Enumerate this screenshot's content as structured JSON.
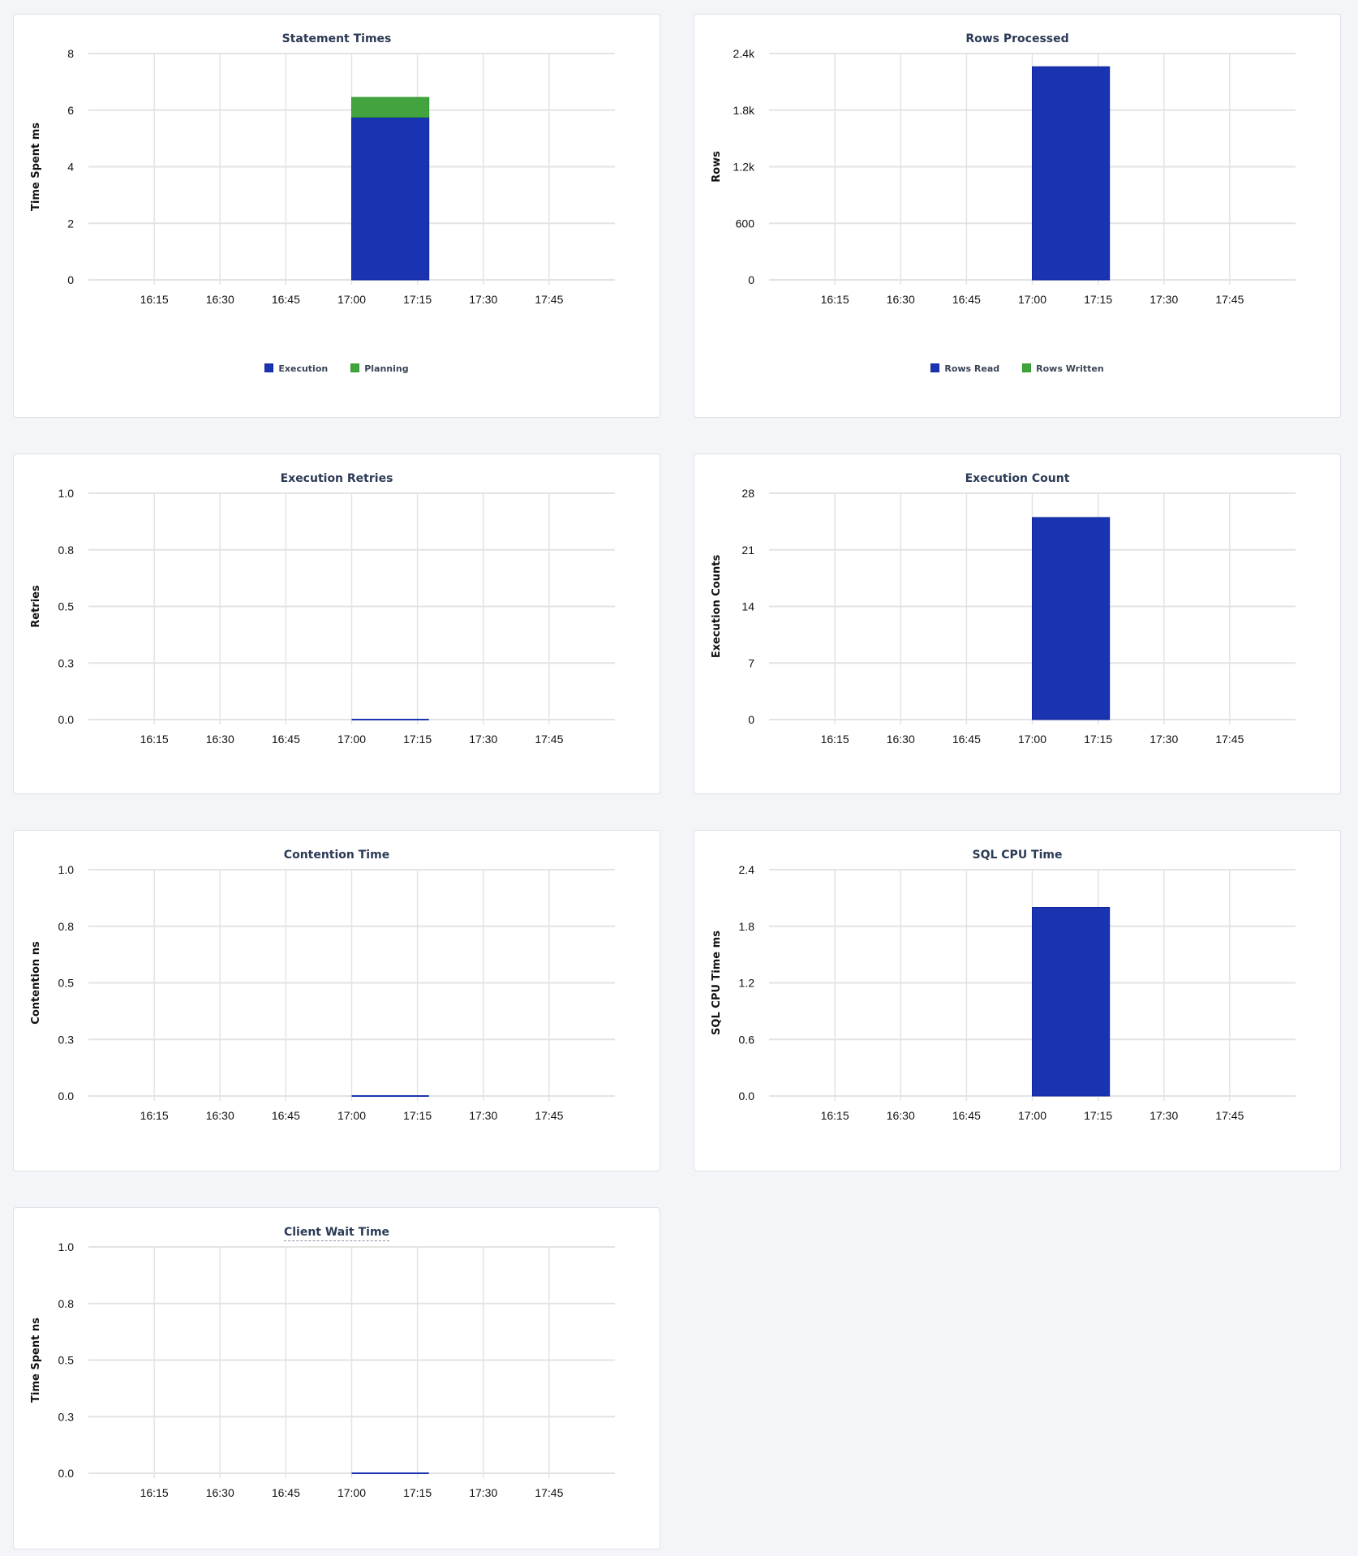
{
  "colors": {
    "primary": "#1a34b1",
    "secondary": "#43a33f",
    "grid": "#e3e3e3",
    "title": "#2b3a55"
  },
  "chart_data": [
    {
      "type": "bar",
      "stacked": true,
      "title": "Statement Times",
      "ylabel": "Time Spent ms",
      "xlabel": "",
      "xlim": [
        "16:00",
        "18:00"
      ],
      "xticks": [
        "16:15",
        "16:30",
        "16:45",
        "17:00",
        "17:15",
        "17:30",
        "17:45"
      ],
      "ylim": [
        0,
        8
      ],
      "yticks": [
        "0",
        "2",
        "4",
        "6",
        "8"
      ],
      "grid": true,
      "legend": "bottom",
      "x": [
        "17:00"
      ],
      "series": [
        {
          "name": "Execution",
          "color": "#1a34b1",
          "values": [
            5.75
          ]
        },
        {
          "name": "Planning",
          "color": "#43a33f",
          "values": [
            0.7
          ]
        }
      ]
    },
    {
      "type": "bar",
      "stacked": true,
      "title": "Rows Processed",
      "ylabel": "Rows",
      "xlabel": "",
      "xlim": [
        "16:00",
        "18:00"
      ],
      "xticks": [
        "16:15",
        "16:30",
        "16:45",
        "17:00",
        "17:15",
        "17:30",
        "17:45"
      ],
      "ylim": [
        0,
        2400
      ],
      "yticks": [
        "0",
        "600",
        "1.2k",
        "1.8k",
        "2.4k"
      ],
      "grid": true,
      "legend": "bottom",
      "x": [
        "17:00"
      ],
      "series": [
        {
          "name": "Rows Read",
          "color": "#1a34b1",
          "values": [
            2260
          ]
        },
        {
          "name": "Rows Written",
          "color": "#43a33f",
          "values": [
            0
          ]
        }
      ]
    },
    {
      "type": "bar",
      "title": "Execution Retries",
      "ylabel": "Retries",
      "xlabel": "",
      "xlim": [
        "16:00",
        "18:00"
      ],
      "xticks": [
        "16:15",
        "16:30",
        "16:45",
        "17:00",
        "17:15",
        "17:30",
        "17:45"
      ],
      "ylim": [
        0,
        1
      ],
      "yticks": [
        "0.0",
        "0.3",
        "0.5",
        "0.8",
        "1.0"
      ],
      "grid": true,
      "x": [
        "17:00"
      ],
      "series": [
        {
          "color": "#1a34b1",
          "values": [
            0
          ]
        }
      ]
    },
    {
      "type": "bar",
      "title": "Execution Count",
      "ylabel": "Execution Counts",
      "xlabel": "",
      "xlim": [
        "16:00",
        "18:00"
      ],
      "xticks": [
        "16:15",
        "16:30",
        "16:45",
        "17:00",
        "17:15",
        "17:30",
        "17:45"
      ],
      "ylim": [
        0,
        28
      ],
      "yticks": [
        "0",
        "7",
        "14",
        "21",
        "28"
      ],
      "grid": true,
      "x": [
        "17:00"
      ],
      "series": [
        {
          "color": "#1a34b1",
          "values": [
            25
          ]
        }
      ]
    },
    {
      "type": "bar",
      "title": "Contention Time",
      "ylabel": "Contention ns",
      "xlabel": "",
      "xlim": [
        "16:00",
        "18:00"
      ],
      "xticks": [
        "16:15",
        "16:30",
        "16:45",
        "17:00",
        "17:15",
        "17:30",
        "17:45"
      ],
      "ylim": [
        0,
        1
      ],
      "yticks": [
        "0.0",
        "0.3",
        "0.5",
        "0.8",
        "1.0"
      ],
      "grid": true,
      "x": [
        "17:00"
      ],
      "series": [
        {
          "color": "#1a34b1",
          "values": [
            0
          ]
        }
      ]
    },
    {
      "type": "bar",
      "title": "SQL CPU Time",
      "ylabel": "SQL CPU Time ms",
      "xlabel": "",
      "xlim": [
        "16:00",
        "18:00"
      ],
      "xticks": [
        "16:15",
        "16:30",
        "16:45",
        "17:00",
        "17:15",
        "17:30",
        "17:45"
      ],
      "ylim": [
        0,
        2.4
      ],
      "yticks": [
        "0.0",
        "0.6",
        "1.2",
        "1.8",
        "2.4"
      ],
      "grid": true,
      "x": [
        "17:00"
      ],
      "series": [
        {
          "color": "#1a34b1",
          "values": [
            2.0
          ]
        }
      ]
    },
    {
      "type": "bar",
      "title": "Client Wait Time",
      "title_has_tooltip": true,
      "ylabel": "Time Spent ns",
      "xlabel": "",
      "xlim": [
        "16:00",
        "18:00"
      ],
      "xticks": [
        "16:15",
        "16:30",
        "16:45",
        "17:00",
        "17:15",
        "17:30",
        "17:45"
      ],
      "ylim": [
        0,
        1
      ],
      "yticks": [
        "0.0",
        "0.3",
        "0.5",
        "0.8",
        "1.0"
      ],
      "grid": true,
      "x": [
        "17:00"
      ],
      "series": [
        {
          "color": "#1a34b1",
          "values": [
            0
          ]
        }
      ]
    }
  ]
}
